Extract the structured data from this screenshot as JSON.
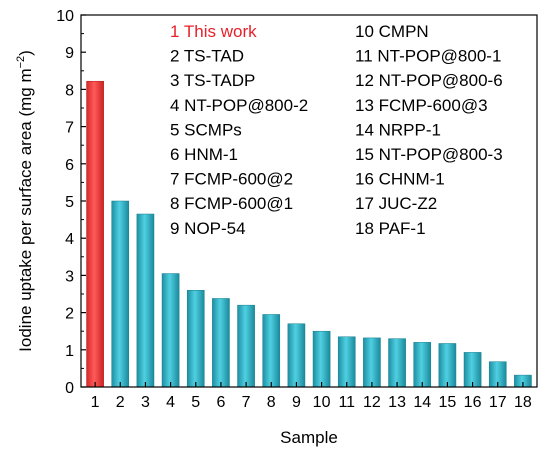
{
  "chart_data": {
    "type": "bar",
    "title": "",
    "xlabel": "Sample",
    "ylabel": "Iodine uptake per surface area (mg m",
    "ylabel_superscript": "−2",
    "ylabel_close": ")",
    "ylim": [
      0,
      10
    ],
    "yticks": [
      "0",
      "1",
      "2",
      "3",
      "4",
      "5",
      "6",
      "7",
      "8",
      "9",
      "10"
    ],
    "categories": [
      "1",
      "2",
      "3",
      "4",
      "5",
      "6",
      "7",
      "8",
      "9",
      "10",
      "11",
      "12",
      "13",
      "14",
      "15",
      "16",
      "17",
      "18"
    ],
    "values": [
      8.22,
      5.0,
      4.65,
      3.05,
      2.6,
      2.38,
      2.2,
      1.95,
      1.7,
      1.5,
      1.35,
      1.32,
      1.3,
      1.2,
      1.17,
      0.93,
      0.68,
      0.32
    ],
    "bar_colors": [
      "#f03c3c",
      "#2bb3c8",
      "#2bb3c8",
      "#2bb3c8",
      "#2bb3c8",
      "#2bb3c8",
      "#2bb3c8",
      "#2bb3c8",
      "#2bb3c8",
      "#2bb3c8",
      "#2bb3c8",
      "#2bb3c8",
      "#2bb3c8",
      "#2bb3c8",
      "#2bb3c8",
      "#2bb3c8",
      "#2bb3c8",
      "#2bb3c8"
    ],
    "highlight_color": "#e8202a",
    "legend": {
      "placement": "top-inside",
      "columns": [
        [
          "1 This work",
          "2 TS-TAD",
          "3 TS-TADP",
          "4 NT-POP@800-2",
          "5 SCMPs",
          "6 HNM-1",
          "7 FCMP-600@2",
          "8 FCMP-600@1",
          "9 NOP-54"
        ],
        [
          "10 CMPN",
          "11 NT-POP@800-1",
          "12 NT-POP@800-6",
          "13 FCMP-600@3",
          "14 NRPP-1",
          "15 NT-POP@800-3",
          "16 CHNM-1",
          "17 JUC-Z2",
          "18 PAF-1"
        ]
      ]
    },
    "grid": false
  }
}
